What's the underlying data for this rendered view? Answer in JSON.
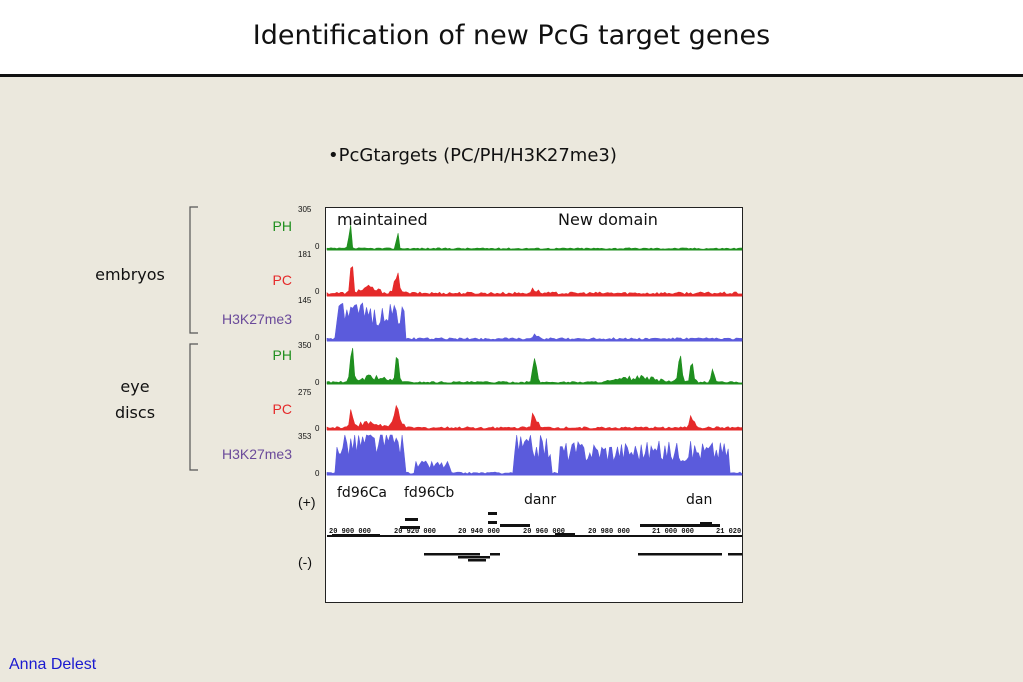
{
  "slide": {
    "title": "Identification of new PcG target genes",
    "bullet": "•PcGtargets (PC/PH/H3K27me3)",
    "author": "Anna Delest"
  },
  "panel": {
    "header_left": "maintained",
    "header_right": "New domain",
    "groups": [
      "embryos",
      "eye\ndiscs"
    ],
    "tracks": [
      {
        "label": "PH",
        "color": "#1f8f1f",
        "max": "305",
        "min": "0"
      },
      {
        "label": "PC",
        "color": "#e52a2a",
        "max": "181",
        "min": "0"
      },
      {
        "label": "H3K27me3",
        "color": "#5b5bdc",
        "label_color": "#6a4a9a",
        "max": "145",
        "min": "0"
      },
      {
        "label": "PH",
        "color": "#1f8f1f",
        "max": "350",
        "min": "0"
      },
      {
        "label": "PC",
        "color": "#e52a2a",
        "max": "275",
        "min": "0"
      },
      {
        "label": "H3K27me3",
        "color": "#5b5bdc",
        "label_color": "#6a4a9a",
        "max": "353",
        "min": "0"
      }
    ],
    "genes": [
      "fd96Ca",
      "fd96Cb",
      "danr",
      "dan"
    ],
    "strands": [
      "(+)",
      "(-)"
    ],
    "coordinates": [
      "20 900 000",
      "20 920 000",
      "20 940 000",
      "20 960 000",
      "20 980 000",
      "21 000 000",
      "21 020"
    ]
  }
}
